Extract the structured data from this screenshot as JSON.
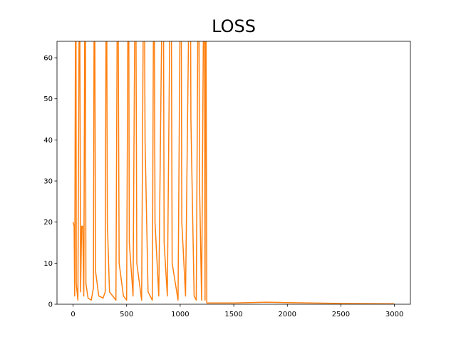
{
  "chart_data": {
    "type": "line",
    "title": "LOSS",
    "x": [
      0,
      10,
      15,
      26,
      30,
      45,
      55,
      60,
      70,
      80,
      90,
      100,
      113,
      120,
      140,
      170,
      190,
      199,
      210,
      240,
      280,
      300,
      311,
      320,
      340,
      400,
      417,
      430,
      470,
      500,
      517,
      525,
      560,
      583,
      595,
      640,
      662,
      672,
      700,
      740,
      755,
      765,
      800,
      841,
      850,
      880,
      914,
      925,
      980,
      1007,
      1015,
      1050,
      1093,
      1100,
      1130,
      1150,
      1172,
      1180,
      1200,
      1225,
      1232,
      1238,
      1248,
      1500,
      1800,
      2000,
      2500,
      2999
    ],
    "values": [
      20,
      19,
      2,
      100,
      5,
      1,
      60,
      100,
      3,
      19,
      19,
      2,
      100,
      5,
      1.5,
      1,
      4,
      100,
      8,
      2,
      1.5,
      3,
      100,
      20,
      3,
      1,
      100,
      10,
      2,
      1,
      100,
      15,
      2,
      100,
      10,
      1,
      100,
      40,
      3,
      1,
      100,
      20,
      2,
      100,
      15,
      2,
      100,
      10,
      1,
      100,
      20,
      2,
      100,
      45,
      2,
      1,
      100,
      30,
      1,
      100,
      1,
      100,
      0.3,
      0.3,
      0.5,
      0.4,
      0.2,
      0.1
    ],
    "color": "#ff7f0e",
    "xlim": [
      -150,
      3149
    ],
    "xticks": [
      0,
      500,
      1000,
      1500,
      2000,
      2500,
      3000
    ],
    "ylim": [
      0,
      64
    ],
    "yticks": [
      0,
      10,
      20,
      30,
      40,
      50,
      60
    ],
    "grid": false
  }
}
